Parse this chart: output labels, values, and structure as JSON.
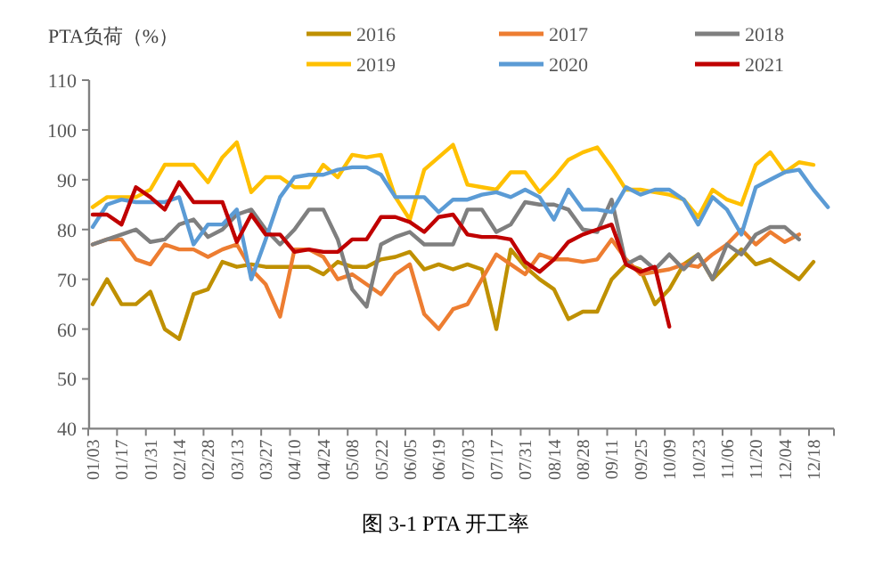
{
  "chart_data": {
    "type": "line",
    "title": "图 3-1 PTA 开工率",
    "ylabel": "PTA负荷（%）",
    "categories": [
      "01/03",
      null,
      "01/17",
      null,
      "01/31",
      null,
      "02/14",
      null,
      "02/28",
      null,
      "03/13",
      null,
      "03/27",
      null,
      "04/10",
      null,
      "04/24",
      null,
      "05/08",
      null,
      "05/22",
      null,
      "06/05",
      null,
      "06/19",
      null,
      "07/03",
      null,
      "07/17",
      null,
      "07/31",
      null,
      "08/14",
      null,
      "08/28",
      null,
      "09/11",
      null,
      "09/25",
      null,
      "10/09",
      null,
      "10/23",
      null,
      "11/06",
      null,
      "11/20",
      null,
      "12/04",
      null,
      "12/18",
      null
    ],
    "series": [
      {
        "name": "2016",
        "color": "#bf9000",
        "values": [
          65,
          70,
          65,
          65,
          67.5,
          60,
          58,
          67,
          68,
          73.5,
          72.5,
          73,
          72.5,
          72.5,
          72.5,
          72.5,
          71,
          73.5,
          72.5,
          72.5,
          74,
          74.5,
          75.5,
          72,
          73,
          72,
          73,
          72,
          60,
          76,
          72.5,
          70,
          68,
          62,
          63.5,
          63.5,
          70,
          73,
          72,
          65,
          68,
          73,
          75,
          70,
          73,
          76,
          73,
          74,
          72,
          70,
          73.5,
          null
        ]
      },
      {
        "name": "2017",
        "color": "#ed7d31",
        "values": [
          77,
          78,
          78,
          74,
          73,
          77,
          76,
          76,
          74.5,
          76,
          77,
          72,
          69,
          62.5,
          76,
          76,
          74.5,
          70,
          71,
          69,
          67,
          71,
          73,
          63,
          60,
          64,
          65,
          70,
          75,
          73,
          71,
          75,
          74,
          74,
          73.5,
          74,
          78,
          74,
          71,
          71.5,
          72,
          73,
          72.5,
          75,
          77,
          80,
          77,
          79.5,
          77.5,
          79,
          null,
          null
        ]
      },
      {
        "name": "2018",
        "color": "#7f7f7f",
        "values": [
          77,
          78,
          79,
          80,
          77.5,
          78,
          81,
          82,
          78.5,
          80,
          83,
          84,
          80,
          77,
          80,
          84,
          84,
          78,
          68,
          64.5,
          77,
          78.5,
          79.5,
          77,
          77,
          77,
          84,
          84,
          79.5,
          81,
          85.5,
          85,
          85,
          84,
          80,
          79.5,
          86,
          73,
          74.5,
          72,
          75,
          72,
          75,
          70,
          77,
          75,
          79,
          80.5,
          80.5,
          78,
          null,
          null
        ]
      },
      {
        "name": "2019",
        "color": "#ffc000",
        "values": [
          84.5,
          86.5,
          86.5,
          86.5,
          88,
          93,
          93,
          93,
          89.5,
          94.5,
          97.5,
          87.5,
          90.5,
          90.5,
          88.5,
          88.5,
          93,
          90.5,
          95,
          94.5,
          95,
          86.5,
          82,
          92,
          94.5,
          97,
          89,
          88.5,
          88,
          91.5,
          91.5,
          87.5,
          90.5,
          94,
          95.5,
          96.5,
          92.5,
          88,
          88,
          87.5,
          87,
          86,
          82.5,
          88,
          86,
          85,
          93,
          95.5,
          91.5,
          93.5,
          93,
          null
        ]
      },
      {
        "name": "2020",
        "color": "#5b9bd5",
        "values": [
          80.5,
          85,
          86,
          85.5,
          85.5,
          85.5,
          86.5,
          77,
          81,
          81,
          84,
          70,
          78,
          86.5,
          90.5,
          91,
          91,
          92,
          92.5,
          92.5,
          91,
          86.5,
          86.5,
          86.5,
          83.5,
          86,
          86,
          87,
          87.5,
          86.5,
          88,
          86.5,
          82,
          88,
          84,
          84,
          83.5,
          88.5,
          87,
          88,
          88,
          86,
          81,
          86.5,
          84,
          79,
          88.5,
          90,
          91.5,
          92,
          88,
          84.5
        ]
      },
      {
        "name": "2021",
        "color": "#c00000",
        "values": [
          83,
          83,
          81,
          88.5,
          86.5,
          84,
          89.5,
          85.5,
          85.5,
          85.5,
          77.5,
          83,
          79,
          79,
          75.5,
          76,
          75.5,
          75.5,
          78,
          78,
          82.5,
          82.5,
          81.5,
          79.5,
          82.5,
          83,
          79,
          78.5,
          78.5,
          78,
          73.5,
          71.5,
          74,
          77.5,
          79,
          80,
          81,
          73,
          71.5,
          72.5,
          60.5,
          null,
          null,
          null,
          null,
          null,
          null,
          null,
          null,
          null,
          null,
          null
        ]
      }
    ],
    "ylim": [
      40,
      110
    ],
    "yticks": [
      40,
      50,
      60,
      70,
      80,
      90,
      100,
      110
    ],
    "legend": "top",
    "grid": false,
    "marker": "none",
    "line_style": "solid"
  }
}
